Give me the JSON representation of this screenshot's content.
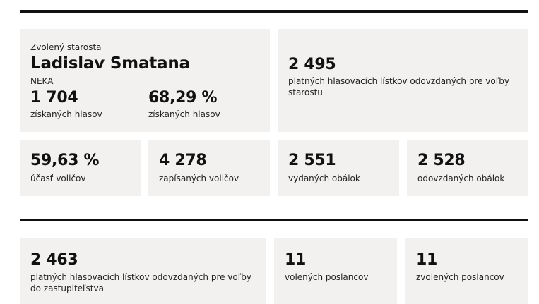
{
  "mayor": {
    "heading": "Zvolený starosta",
    "name": "Ladislav Smatana",
    "party": "NEKA",
    "votes": "1 704",
    "votes_label": "získaných hlasov",
    "percent": "68,29 %",
    "percent_label": "získaných hlasov"
  },
  "valid_mayor_ballots": {
    "value": "2 495",
    "label": "platných hlasovacích lístkov odovzdaných pre voľby starostu"
  },
  "turnout": {
    "value": "59,63 %",
    "label": "účasť voličov"
  },
  "registered": {
    "value": "4 278",
    "label": "zapísaných voličov"
  },
  "issued": {
    "value": "2 551",
    "label": "vydaných obálok"
  },
  "submitted": {
    "value": "2 528",
    "label": "odovzdaných obálok"
  },
  "valid_council_ballots": {
    "value": "2 463",
    "label": "platných hlasovacích lístkov odovzdaných pre voľby do zastupiteľstva"
  },
  "seats_elected": {
    "value": "11",
    "label": "volených poslancov"
  },
  "members_elected": {
    "value": "11",
    "label": "zvolených poslancov"
  }
}
